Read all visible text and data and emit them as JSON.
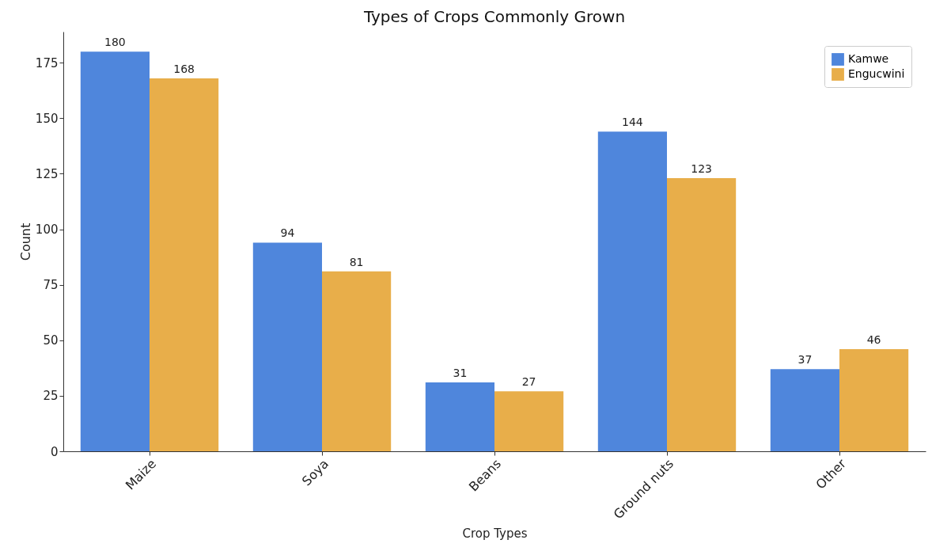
{
  "chart_data": {
    "type": "bar",
    "title": "Types of Crops Commonly Grown",
    "xlabel": "Crop Types",
    "ylabel": "Count",
    "categories": [
      "Maize",
      "Soya",
      "Beans",
      "Ground nuts",
      "Other"
    ],
    "series": [
      {
        "name": "Kamwe",
        "color": "#4f86dc",
        "values": [
          180,
          94,
          31,
          144,
          37
        ]
      },
      {
        "name": "Engucwini",
        "color": "#e8ae4a",
        "values": [
          168,
          81,
          27,
          123,
          46
        ]
      }
    ],
    "ylim": [
      0,
      189
    ],
    "yticks": [
      0,
      25,
      50,
      75,
      100,
      125,
      150,
      175
    ],
    "grid": false,
    "legend": "top right",
    "data_labels": true
  }
}
